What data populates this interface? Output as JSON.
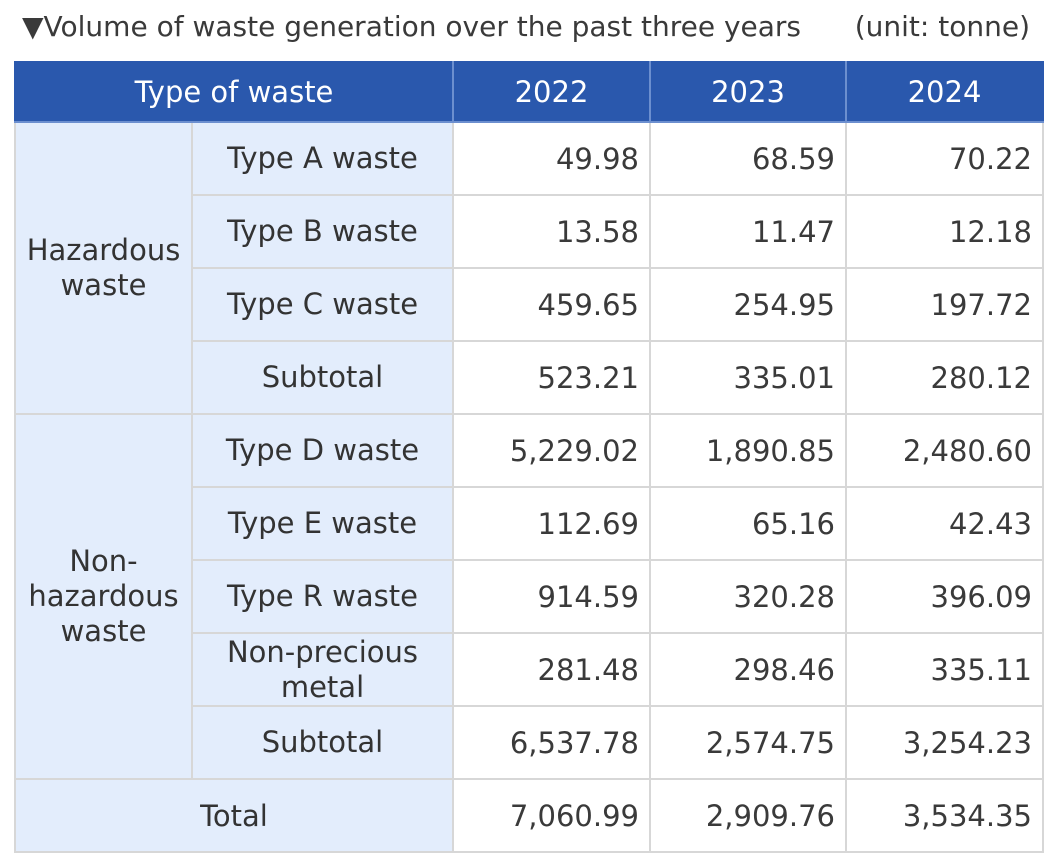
{
  "caption": {
    "title": "▼Volume of waste generation over the past three years",
    "unit": "(unit: tonne)"
  },
  "table": {
    "header": {
      "type_label": "Type of waste",
      "years": [
        "2022",
        "2023",
        "2024"
      ]
    },
    "hazardous": {
      "label": "Hazardous waste",
      "rows": [
        {
          "name": "Type A waste",
          "values": [
            "49.98",
            "68.59",
            "70.22"
          ]
        },
        {
          "name": "Type B waste",
          "values": [
            "13.58",
            "11.47",
            "12.18"
          ]
        },
        {
          "name": "Type C waste",
          "values": [
            "459.65",
            "254.95",
            "197.72"
          ]
        },
        {
          "name": "Subtotal",
          "values": [
            "523.21",
            "335.01",
            "280.12"
          ]
        }
      ]
    },
    "non_hazardous": {
      "label": "Non-hazardous waste",
      "rows": [
        {
          "name": "Type D waste",
          "values": [
            "5,229.02",
            "1,890.85",
            "2,480.60"
          ]
        },
        {
          "name": "Type E waste",
          "values": [
            "112.69",
            "65.16",
            "42.43"
          ]
        },
        {
          "name": "Type R waste",
          "values": [
            "914.59",
            "320.28",
            "396.09"
          ]
        },
        {
          "name": "Non-precious metal",
          "values": [
            "281.48",
            "298.46",
            "335.11"
          ]
        },
        {
          "name": "Subtotal",
          "values": [
            "6,537.78",
            "2,574.75",
            "3,254.23"
          ]
        }
      ]
    },
    "total": {
      "label": "Total",
      "values": [
        "7,060.99",
        "2,909.76",
        "3,534.35"
      ]
    }
  }
}
